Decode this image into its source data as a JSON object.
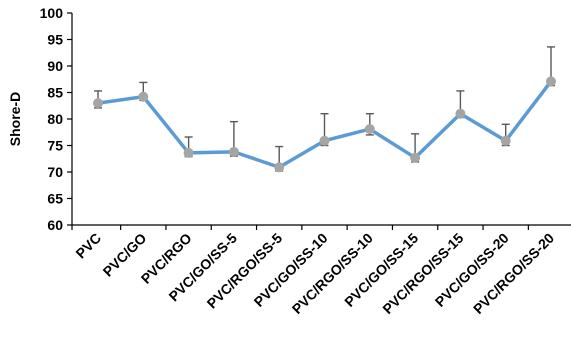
{
  "chart_data": {
    "type": "line",
    "ylabel": "Shore-D",
    "xlabel": "",
    "ylim": [
      60,
      100
    ],
    "yticks": [
      60,
      65,
      70,
      75,
      80,
      85,
      90,
      95,
      100
    ],
    "grid": false,
    "categories": [
      "PVC",
      "PVC/GO",
      "PVC/RGO",
      "PVC/GO/SS-5",
      "PVC/RGO/SS-5",
      "PVC/GO/SS-10",
      "PVC/RGO/SS-10",
      "PVC/GO/SS-15",
      "PVC/RGO/SS-15",
      "PVC/GO/SS-20",
      "PVC/RGO/SS-20"
    ],
    "series": [
      {
        "values": [
          83.0,
          84.2,
          73.6,
          73.8,
          70.9,
          75.9,
          78.1,
          72.7,
          81.0,
          75.9,
          87.1
        ],
        "error_upper": [
          85.3,
          86.9,
          76.6,
          79.5,
          74.8,
          81.0,
          81.0,
          77.2,
          85.3,
          79.0,
          93.6
        ],
        "error_lower": [
          82.1,
          83.5,
          72.9,
          73.0,
          70.2,
          75.0,
          77.0,
          71.9,
          80.3,
          75.0,
          86.3
        ],
        "line_color": "#5b9bd5",
        "marker_color": "#a5a5a5",
        "errorbar_color": "#595959"
      }
    ]
  }
}
